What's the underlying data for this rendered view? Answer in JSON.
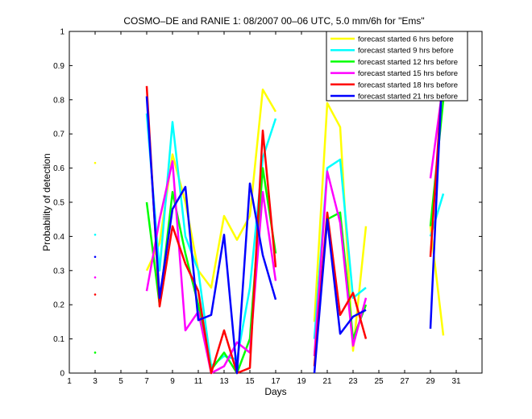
{
  "chart_data": {
    "type": "line",
    "title": "COSMO–DE and RANIE 1: 08/2007 00–06 UTC, 5.0 mm/6h for \"Ems\"",
    "xlabel": "Days",
    "ylabel": "Probability of detection",
    "xlim": [
      1,
      33
    ],
    "ylim": [
      0,
      1
    ],
    "xticks": [
      1,
      3,
      5,
      7,
      9,
      11,
      13,
      15,
      17,
      19,
      21,
      23,
      25,
      27,
      29,
      31
    ],
    "yticks": [
      0,
      0.1,
      0.2,
      0.3,
      0.4,
      0.5,
      0.6,
      0.7,
      0.8,
      0.9,
      1
    ],
    "grid": false,
    "legend_position": "top-right",
    "series": [
      {
        "name": "forecast started 6 hrs before",
        "color": "#ffff00",
        "points": [
          [
            3,
            0.615
          ],
          null,
          [
            7,
            0.3
          ],
          [
            8,
            0.38
          ],
          [
            9,
            0.64
          ],
          [
            10,
            0.5
          ],
          [
            11,
            0.3
          ],
          [
            12,
            0.25
          ],
          [
            13,
            0.46
          ],
          [
            14,
            0.39
          ],
          [
            15,
            0.46
          ],
          [
            16,
            0.83
          ],
          [
            17,
            0.765
          ],
          null,
          [
            20,
            0.15
          ],
          [
            21,
            0.79
          ],
          [
            22,
            0.72
          ],
          [
            23,
            0.065
          ],
          [
            24,
            0.43
          ],
          null,
          [
            29,
            0.43
          ],
          [
            30,
            0.11
          ]
        ]
      },
      {
        "name": "forecast started 9 hrs before",
        "color": "#00ffff",
        "points": [
          [
            3,
            0.405
          ],
          null,
          [
            7,
            0.76
          ],
          [
            8,
            0.3
          ],
          [
            9,
            0.735
          ],
          [
            10,
            0.4
          ],
          [
            11,
            0.3
          ],
          [
            12,
            0.02
          ],
          [
            13,
            0.05
          ],
          [
            14,
            0.04
          ],
          [
            15,
            0.25
          ],
          [
            16,
            0.63
          ],
          [
            17,
            0.745
          ],
          null,
          [
            20,
            0.1
          ],
          [
            21,
            0.6
          ],
          [
            22,
            0.625
          ],
          [
            23,
            0.22
          ],
          [
            24,
            0.25
          ],
          null,
          [
            29,
            0.4
          ],
          [
            30,
            0.525
          ]
        ]
      },
      {
        "name": "forecast started 12 hrs before",
        "color": "#00ff00",
        "points": [
          [
            3,
            0.06
          ],
          null,
          [
            7,
            0.5
          ],
          [
            8,
            0.2
          ],
          [
            9,
            0.53
          ],
          [
            10,
            0.35
          ],
          [
            11,
            0.2
          ],
          [
            12,
            0.01
          ],
          [
            13,
            0.06
          ],
          [
            14,
            0.0
          ],
          [
            15,
            0.1
          ],
          [
            16,
            0.6
          ],
          [
            17,
            0.35
          ],
          null,
          [
            20,
            0.05
          ],
          [
            21,
            0.45
          ],
          [
            22,
            0.47
          ],
          [
            23,
            0.1
          ],
          [
            24,
            0.2
          ],
          null,
          [
            29,
            0.43
          ],
          [
            30,
            0.8
          ]
        ]
      },
      {
        "name": "forecast started 15 hrs before",
        "color": "#ff00ff",
        "points": [
          [
            3,
            0.28
          ],
          null,
          [
            7,
            0.24
          ],
          [
            8,
            0.45
          ],
          [
            9,
            0.62
          ],
          [
            10,
            0.125
          ],
          [
            11,
            0.18
          ],
          [
            12,
            0.0
          ],
          [
            13,
            0.02
          ],
          [
            14,
            0.09
          ],
          [
            15,
            0.06
          ],
          [
            16,
            0.53
          ],
          [
            17,
            0.27
          ],
          null,
          [
            20,
            0.05
          ],
          [
            21,
            0.59
          ],
          [
            22,
            0.44
          ],
          [
            23,
            0.08
          ],
          [
            24,
            0.22
          ],
          null,
          [
            29,
            0.57
          ],
          [
            30,
            0.85
          ]
        ]
      },
      {
        "name": "forecast started 18 hrs before",
        "color": "#ff0000",
        "points": [
          [
            3,
            0.23
          ],
          null,
          [
            7,
            0.84
          ],
          [
            8,
            0.195
          ],
          [
            9,
            0.43
          ],
          [
            10,
            0.32
          ],
          [
            11,
            0.24
          ],
          [
            12,
            0.0
          ],
          [
            13,
            0.125
          ],
          [
            14,
            0.0
          ],
          [
            15,
            0.015
          ],
          [
            16,
            0.71
          ],
          [
            17,
            0.31
          ],
          null,
          [
            20,
            0.02
          ],
          [
            21,
            0.47
          ],
          [
            22,
            0.17
          ],
          [
            23,
            0.235
          ],
          [
            24,
            0.1
          ],
          null,
          [
            29,
            0.34
          ],
          [
            30,
            0.9
          ]
        ]
      },
      {
        "name": "forecast started 21 hrs before",
        "color": "#0000ff",
        "points": [
          [
            3,
            0.34
          ],
          null,
          [
            7,
            0.81
          ],
          [
            8,
            0.22
          ],
          [
            9,
            0.48
          ],
          [
            10,
            0.545
          ],
          [
            11,
            0.155
          ],
          [
            12,
            0.17
          ],
          [
            13,
            0.405
          ],
          [
            14,
            0.0
          ],
          [
            15,
            0.555
          ],
          [
            16,
            0.345
          ],
          [
            17,
            0.215
          ],
          null,
          [
            20,
            0.0
          ],
          [
            21,
            0.45
          ],
          [
            22,
            0.115
          ],
          [
            23,
            0.165
          ],
          [
            24,
            0.185
          ],
          null,
          [
            29,
            0.13
          ],
          [
            30,
            0.945
          ]
        ]
      }
    ]
  }
}
